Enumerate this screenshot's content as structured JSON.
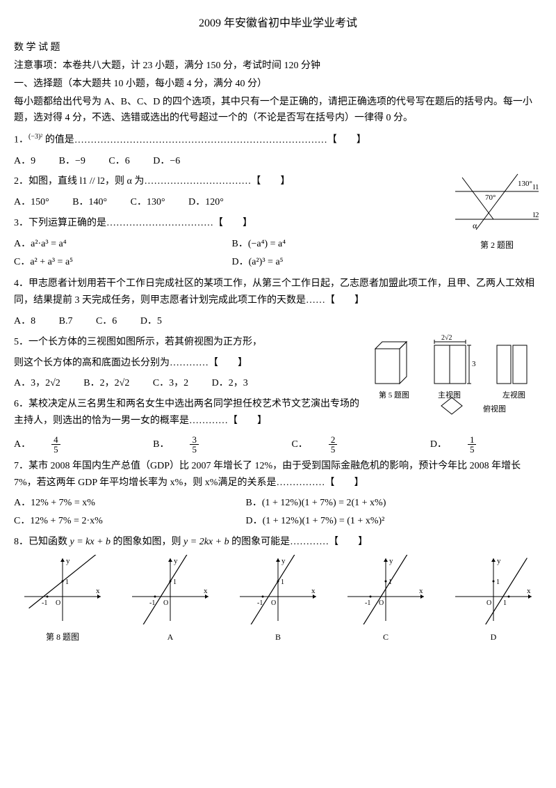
{
  "title": "2009 年安徽省初中毕业学业考试",
  "subject": "数 学 试 题",
  "notice": "注意事项：本卷共八大题，计 23 小题，满分 150 分，考试时间 120 分钟",
  "section1": "一、选择题（本大题共 10 小题，每小题 4 分，满分 40 分）",
  "section1_desc1": "每小题都给出代号为 A、B、C、D 的四个选项，其中只有一个是正确的，请把正确选项的代号写在题后的括号内。每一小题，选对得 4 分，不选、选错或选出的代号超过一个的（不论是否写在括号内）一律得 0 分。",
  "q1": {
    "stem_a": "1．",
    "expr": "(−3)²",
    "stem_b": " 的值是",
    "end": "【　　】",
    "opts": {
      "a": "A．9",
      "b": "B．−9",
      "c": "C．6",
      "d": "D．−6"
    }
  },
  "q2": {
    "stem": "2．如图，直线 l1 // l2，则 α 为",
    "end": "【　　】",
    "opts": {
      "a": "A．150°",
      "b": "B．140°",
      "c": "C．130°",
      "d": "D．120°"
    },
    "fig": {
      "label": "第 2 题图",
      "angle_top": "130°",
      "angle_left": "70°",
      "alpha": "α",
      "l1": "l1",
      "l2": "l2",
      "line_color": "#000000"
    }
  },
  "q3": {
    "stem": "3．下列运算正确的是",
    "end": "【　　】",
    "opts": {
      "a": "A．a²·a³ = a⁴",
      "b": "B．(−a⁴) = a⁴",
      "c": "C．a² + a³ = a⁵",
      "d": "D．(a²)³ = a⁵"
    }
  },
  "q4": {
    "stem": "4．甲志愿者计划用若干个工作日完成社区的某项工作，从第三个工作日起，乙志愿者加盟此项工作，且甲、乙两人工效相同，结果提前 3 天完成任务，则甲志愿者计划完成此项工作的天数是……【　　】",
    "opts": {
      "a": "A．8",
      "b": "B.7",
      "c": "C．6",
      "d": "D．5"
    }
  },
  "q5": {
    "stem1": "5．一个长方体的三视图如图所示，若其俯视图为正方形，",
    "stem2": "则这个长方体的高和底面边长分别为",
    "end": "【　　】",
    "opts": {
      "a": "A．3，2√2",
      "b": "B．2，2√2",
      "c": "C．3，2",
      "d": "D．2，3"
    },
    "fig": {
      "label_main": "第 5 题图",
      "label_front": "主视图",
      "label_side": "左视图",
      "label_top": "俯视图",
      "dim_w": "2√2",
      "dim_h": "3",
      "line_color": "#000000"
    }
  },
  "q6": {
    "stem1": "6．某校决定从三名男生和两名女生中选出两名同学担任校艺术节文艺演出专场的主持人，则选出的恰为一男一女的概率是",
    "end": "【　　】",
    "opts": {
      "a_pre": "A．",
      "a_n": "4",
      "a_d": "5",
      "b_pre": "B．",
      "b_n": "3",
      "b_d": "5",
      "c_pre": "C．",
      "c_n": "2",
      "c_d": "5",
      "d_pre": "D．",
      "d_n": "1",
      "d_d": "5"
    }
  },
  "q7": {
    "stem": "7．某市 2008 年国内生产总值（GDP）比 2007 年增长了 12%，由于受到国际金融危机的影响，预计今年比 2008 年增长 7%，若这两年 GDP 年平均增长率为 x%，则 x%满足的关系是……………【　　】",
    "opts": {
      "a": "A．12% + 7% = x%",
      "b": "B．(1 + 12%)(1 + 7%) = 2(1 + x%)",
      "c": "C．12% + 7% = 2·x%",
      "d": "D．(1 + 12%)(1 + 7%) = (1 + x%)²"
    }
  },
  "q8": {
    "stem_a": "8．已知函数 ",
    "eq1": "y = kx + b",
    "stem_b": " 的图象如图，则 ",
    "eq2": "y = 2kx + b",
    "stem_c": " 的图象可能是…………",
    "end": "【　　】",
    "graphs": {
      "tick": "1",
      "neg": "-1",
      "x": "x",
      "y": "y",
      "o": "O",
      "labels": [
        "第 8 题图",
        "A",
        "B",
        "C",
        "D"
      ],
      "line_color": "#000000",
      "axis_color": "#000000",
      "background": "#ffffff",
      "line_width": 1.2,
      "slopes": [
        0.8,
        1.6,
        1.6,
        1.6,
        1.6
      ],
      "intercepts": [
        1,
        1,
        1,
        0.5,
        -1
      ],
      "x_intercepts_marked": [
        -1,
        -1,
        -1,
        -1,
        1
      ]
    }
  }
}
